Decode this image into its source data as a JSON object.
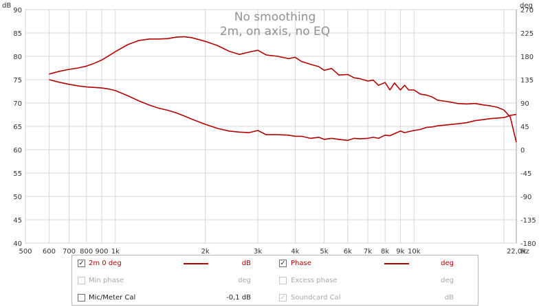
{
  "chart_data": {
    "type": "line",
    "title": "No smoothing",
    "subtitle": "2m, on axis, no EQ",
    "left_axis_unit": "dB",
    "right_axis_unit": "deg",
    "x_axis_unit": "Hz",
    "x_scale": "log",
    "xlim": [
      500,
      22000
    ],
    "ylim": [
      40,
      90
    ],
    "y2lim": [
      -180,
      270
    ],
    "x_ticks": [
      {
        "v": 500,
        "label": "500"
      },
      {
        "v": 600,
        "label": "600"
      },
      {
        "v": 700,
        "label": "700"
      },
      {
        "v": 800,
        "label": "800"
      },
      {
        "v": 900,
        "label": "900"
      },
      {
        "v": 1000,
        "label": "1k"
      },
      {
        "v": 2000,
        "label": "2k"
      },
      {
        "v": 3000,
        "label": "3k"
      },
      {
        "v": 4000,
        "label": "4k"
      },
      {
        "v": 5000,
        "label": "5k"
      },
      {
        "v": 6000,
        "label": "6k"
      },
      {
        "v": 7000,
        "label": "7k"
      },
      {
        "v": 8000,
        "label": "8k"
      },
      {
        "v": 9000,
        "label": "9k"
      },
      {
        "v": 10000,
        "label": "10k"
      },
      {
        "v": 22000,
        "label": "22,0k"
      }
    ],
    "y_ticks": [
      40,
      45,
      50,
      55,
      60,
      65,
      70,
      75,
      80,
      85,
      90
    ],
    "y2_ticks": [
      {
        "v": -180,
        "label": "-180"
      },
      {
        "v": -135,
        "label": "-135"
      },
      {
        "v": -90,
        "label": "-90"
      },
      {
        "v": -45,
        "label": "-45"
      },
      {
        "v": 0,
        "label": "0"
      },
      {
        "v": 45,
        "label": "45"
      },
      {
        "v": 90,
        "label": "90"
      },
      {
        "v": 135,
        "label": "135"
      },
      {
        "v": 180,
        "label": "180"
      },
      {
        "v": 225,
        "label": "225"
      },
      {
        "v": 270,
        "label": "270"
      }
    ],
    "grid": true,
    "series": [
      {
        "name": "2m 0 deg",
        "axis": "left",
        "color": "#b00000",
        "x": [
          600,
          650,
          700,
          750,
          800,
          850,
          900,
          950,
          1000,
          1100,
          1200,
          1300,
          1400,
          1500,
          1600,
          1700,
          1800,
          2000,
          2200,
          2400,
          2600,
          2800,
          3000,
          3200,
          3500,
          3800,
          4000,
          4200,
          4500,
          4800,
          5000,
          5300,
          5600,
          6000,
          6300,
          6600,
          7000,
          7300,
          7600,
          8000,
          8300,
          8600,
          9000,
          9300,
          9600,
          10000,
          10500,
          11000,
          11500,
          12000,
          13000,
          14000,
          15000,
          16000,
          17000,
          18000,
          19000,
          20000,
          21000,
          22000
        ],
        "y": [
          76.2,
          76.8,
          77.2,
          77.5,
          77.9,
          78.5,
          79.2,
          80.1,
          81.0,
          82.5,
          83.4,
          83.7,
          83.7,
          83.8,
          84.1,
          84.2,
          84.0,
          83.2,
          82.3,
          81.1,
          80.4,
          80.9,
          81.3,
          80.3,
          80.0,
          79.5,
          79.8,
          78.9,
          78.3,
          77.8,
          77.0,
          77.4,
          76.0,
          76.1,
          75.4,
          75.2,
          74.7,
          74.9,
          73.8,
          74.4,
          72.8,
          74.3,
          72.8,
          73.8,
          72.8,
          72.8,
          71.9,
          71.7,
          71.3,
          70.6,
          70.3,
          69.9,
          69.8,
          69.9,
          69.6,
          69.4,
          69.1,
          68.5,
          67.0,
          61.6
        ]
      },
      {
        "name": "Phase",
        "axis": "right",
        "color": "#b00000",
        "x": [
          600,
          650,
          700,
          750,
          800,
          850,
          900,
          950,
          1000,
          1100,
          1200,
          1300,
          1400,
          1500,
          1600,
          1700,
          1800,
          2000,
          2200,
          2400,
          2600,
          2800,
          3000,
          3200,
          3500,
          3800,
          4000,
          4200,
          4500,
          4800,
          5000,
          5300,
          5600,
          6000,
          6300,
          6600,
          7000,
          7300,
          7600,
          8000,
          8300,
          8600,
          9000,
          9300,
          9600,
          10000,
          10500,
          11000,
          11500,
          12000,
          13000,
          14000,
          15000,
          16000,
          17000,
          18000,
          19000,
          20000,
          21000,
          22000
        ],
        "y": [
          135,
          130,
          126,
          123,
          121,
          120,
          119,
          117,
          114,
          104,
          94,
          86,
          80,
          76,
          71,
          65,
          59,
          49,
          41,
          36,
          34,
          33,
          37,
          29,
          29,
          28,
          26,
          26,
          22,
          24,
          20,
          22,
          20,
          18,
          22,
          21,
          22,
          24,
          22,
          28,
          27,
          31,
          36,
          33,
          35,
          37,
          39,
          43,
          44,
          46,
          48,
          50,
          52,
          56,
          58,
          60,
          61,
          62,
          66,
          68
        ]
      }
    ]
  },
  "legend": {
    "row1": {
      "left": {
        "label": "2m 0 deg",
        "unit": "dB",
        "checked": true,
        "color": "#b00000"
      },
      "right": {
        "label": "Phase",
        "unit": "deg",
        "checked": true,
        "color": "#b00000"
      }
    },
    "row2": {
      "left": {
        "label": "Min phase",
        "unit": "deg",
        "checked": false
      },
      "right": {
        "label": "Excess phase",
        "unit": "deg",
        "checked": false
      }
    },
    "row3": {
      "left": {
        "label": "Mic/Meter Cal",
        "unit": "-0,1 dB",
        "checked": false
      },
      "right": {
        "label": "Soundcard Cal",
        "unit": "dB",
        "checked": true
      }
    },
    "check_glyph": "✓"
  }
}
